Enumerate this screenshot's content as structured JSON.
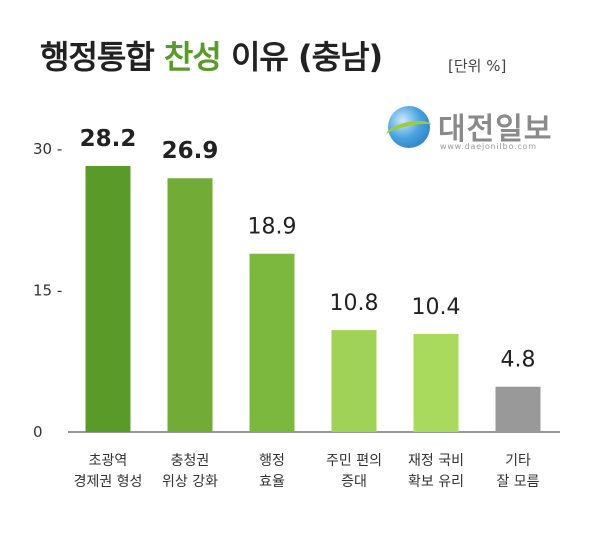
{
  "header": {
    "title_pre": "행정통합 ",
    "title_accent": "찬성",
    "title_post": " 이유 (충남)",
    "unit": "[단위 %]"
  },
  "logo": {
    "name": "대전일보",
    "url": "www.daejonilbo.com"
  },
  "chart_data": {
    "type": "bar",
    "categories": [
      [
        "초광역",
        "경제권 형성"
      ],
      [
        "충청권",
        "위상 강화"
      ],
      [
        "행정",
        "효율"
      ],
      [
        "주민 편의",
        "증대"
      ],
      [
        "재정 국비",
        "확보 유리"
      ],
      [
        "기타",
        "잘 모름"
      ]
    ],
    "values": [
      28.2,
      26.9,
      18.9,
      10.8,
      10.4,
      4.8
    ],
    "value_labels": [
      "28.2",
      "26.9",
      "18.9",
      "10.8",
      "10.4",
      "4.8"
    ],
    "ylim": [
      0,
      30
    ],
    "yticks": [
      0,
      15,
      30
    ],
    "ytick_labels": [
      "0",
      "15 -",
      "30 -"
    ],
    "colors": [
      "#5a9a28",
      "#72ab36",
      "#7cb83e",
      "#a0d258",
      "#a9da5e",
      "#999999"
    ],
    "bold_labels": [
      true,
      true,
      false,
      false,
      false,
      false
    ]
  }
}
